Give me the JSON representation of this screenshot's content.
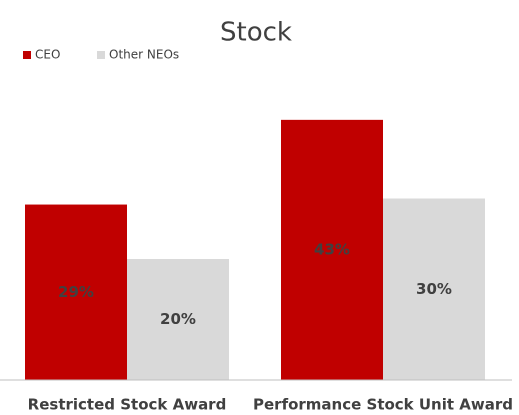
{
  "chart_data": {
    "type": "bar",
    "title": "Stock",
    "categories": [
      "Restricted Stock Award",
      "Performance Stock Unit Award"
    ],
    "series": [
      {
        "name": "CEO",
        "color": "#c00000",
        "values": [
          29,
          43
        ],
        "value_labels": [
          "29%",
          "43%"
        ]
      },
      {
        "name": "Other NEOs",
        "color": "#d9d9d9",
        "values": [
          20,
          30
        ],
        "value_labels": [
          "20%",
          "30%"
        ]
      }
    ],
    "legend": "top-left"
  }
}
